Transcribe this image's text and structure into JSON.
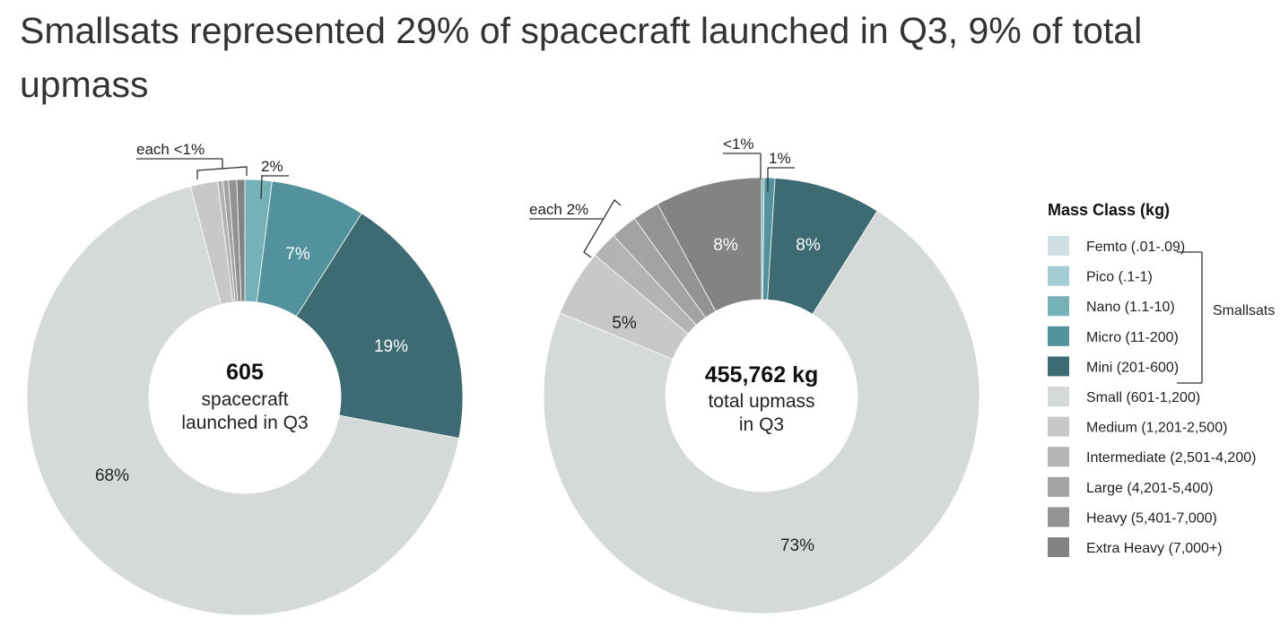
{
  "title": "Smallsats represented 29% of spacecraft launched in Q3, 9% of total upmass",
  "legend": {
    "title": "Mass Class (kg)",
    "items": [
      {
        "label": "Femto (.01-.09)",
        "color": "#cfe0e4"
      },
      {
        "label": "Pico (.1-1)",
        "color": "#a4ccd2"
      },
      {
        "label": "Nano (1.1-10)",
        "color": "#74b1b9"
      },
      {
        "label": "Micro (11-200)",
        "color": "#52929c"
      },
      {
        "label": "Mini (201-600)",
        "color": "#3d6a73"
      },
      {
        "label": "Small (601-1,200)",
        "color": "#d6d9da"
      },
      {
        "label": "Medium (1,201-2,500)",
        "color": "#c8c8c8"
      },
      {
        "label": "Intermediate (2,501-4,200)",
        "color": "#b3b3b3"
      },
      {
        "label": "Large (4,201-5,400)",
        "color": "#a3a3a3"
      },
      {
        "label": "Heavy (5,401-7,000)",
        "color": "#939393"
      },
      {
        "label": "Extra Heavy (7,000+)",
        "color": "#838383"
      }
    ],
    "bracket_label": "Smallsats"
  },
  "chart_data": [
    {
      "type": "pie",
      "variant": "donut",
      "center": {
        "value": "605",
        "lines": [
          "spacecraft",
          "launched in Q3"
        ]
      },
      "slices": [
        {
          "name": "Femto (.01-.09)",
          "value": 0
        },
        {
          "name": "Pico (.1-1)",
          "value": 0
        },
        {
          "name": "Nano (1.1-10)",
          "value": 2,
          "label": "2%"
        },
        {
          "name": "Micro (11-200)",
          "value": 7,
          "label": "7%"
        },
        {
          "name": "Mini (201-600)",
          "value": 19,
          "label": "19%"
        },
        {
          "name": "Small (601-1,200)",
          "value": 68,
          "label": "68%"
        },
        {
          "name": "Medium (1,201-2,500)",
          "value": 2
        },
        {
          "name": "Intermediate (2,501-4,200)",
          "value": 0.4
        },
        {
          "name": "Large (4,201-5,400)",
          "value": 0.4
        },
        {
          "name": "Heavy (5,401-7,000)",
          "value": 0.6
        },
        {
          "name": "Extra Heavy (7,000+)",
          "value": 0.6
        }
      ],
      "annotations": [
        "each <1%",
        "2%"
      ]
    },
    {
      "type": "pie",
      "variant": "donut",
      "center": {
        "value": "455,762 kg",
        "lines": [
          "total upmass",
          "in Q3"
        ]
      },
      "slices": [
        {
          "name": "Femto (.01-.09)",
          "value": 0
        },
        {
          "name": "Pico (.1-1)",
          "value": 0
        },
        {
          "name": "Nano (1.1-10)",
          "value": 0.2
        },
        {
          "name": "Micro (11-200)",
          "value": 0.8
        },
        {
          "name": "Mini (201-600)",
          "value": 8,
          "label": "8%"
        },
        {
          "name": "Small (601-1,200)",
          "value": 73,
          "label": "73%"
        },
        {
          "name": "Medium (1,201-2,500)",
          "value": 5,
          "label": "5%"
        },
        {
          "name": "Intermediate (2,501-4,200)",
          "value": 2
        },
        {
          "name": "Large (4,201-5,400)",
          "value": 2
        },
        {
          "name": "Heavy (5,401-7,000)",
          "value": 2
        },
        {
          "name": "Extra Heavy (7,000+)",
          "value": 8,
          "label": "8%"
        }
      ],
      "annotations": [
        "<1%",
        "1%",
        "each 2%"
      ]
    }
  ]
}
